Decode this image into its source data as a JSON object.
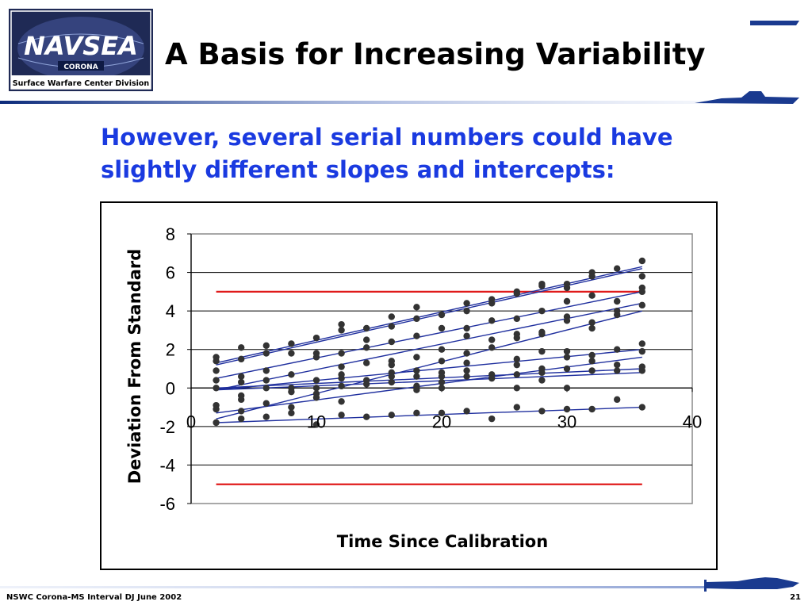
{
  "logo": {
    "wordmark": "NAVSEA",
    "location": "CORONA",
    "division": "Surface Warfare Center Division"
  },
  "slide": {
    "title": "A Basis for Increasing Variability",
    "subtitle": "However, several serial numbers could have slightly different slopes and intercepts:"
  },
  "footer": {
    "left": "NSWC Corona-MS Interval DJ June 2002",
    "page_number": "21"
  },
  "colors": {
    "accent_blue": "#1a3ae0",
    "navy": "#0b2a7a",
    "point": "#333333",
    "limit_line": "#e01b1b",
    "fit_line": "#1f2f9e"
  },
  "chart_data": {
    "type": "scatter",
    "title": "",
    "xlabel": "Time Since Calibration",
    "ylabel": "Deviation From Standard",
    "xlim": [
      0,
      40
    ],
    "ylim": [
      -6,
      8
    ],
    "xticks": [
      0,
      10,
      20,
      30,
      40
    ],
    "yticks": [
      8,
      6,
      4,
      2,
      0,
      -2,
      -4,
      -6
    ],
    "grid": "horizontal",
    "legend": "none",
    "limits": [
      {
        "name": "upper limit",
        "y": 5,
        "x": [
          2,
          36
        ]
      },
      {
        "name": "lower limit",
        "y": -5,
        "x": [
          2,
          36
        ]
      }
    ],
    "fit_lines": [
      {
        "x": [
          2,
          36
        ],
        "y": [
          1.3,
          6.3
        ]
      },
      {
        "x": [
          2,
          36
        ],
        "y": [
          1.2,
          6.2
        ]
      },
      {
        "x": [
          2,
          36
        ],
        "y": [
          0.5,
          5.0
        ]
      },
      {
        "x": [
          2,
          36
        ],
        "y": [
          -0.1,
          4.4
        ]
      },
      {
        "x": [
          2,
          36
        ],
        "y": [
          -1.6,
          4.0
        ]
      },
      {
        "x": [
          2,
          36
        ],
        "y": [
          -0.1,
          2.0
        ]
      },
      {
        "x": [
          2,
          36
        ],
        "y": [
          -1.3,
          1.6
        ]
      },
      {
        "x": [
          2,
          36
        ],
        "y": [
          0.0,
          1.0
        ]
      },
      {
        "x": [
          2,
          36
        ],
        "y": [
          -0.1,
          0.8
        ]
      },
      {
        "x": [
          2,
          36
        ],
        "y": [
          -1.8,
          -1.0
        ]
      }
    ],
    "points": [
      {
        "x": 2,
        "y": 1.6
      },
      {
        "x": 2,
        "y": 1.4
      },
      {
        "x": 2,
        "y": 0.9
      },
      {
        "x": 2,
        "y": 0.4
      },
      {
        "x": 2,
        "y": 0.0
      },
      {
        "x": 2,
        "y": -0.9
      },
      {
        "x": 2,
        "y": -1.1
      },
      {
        "x": 2,
        "y": -1.8
      },
      {
        "x": 4,
        "y": 2.1
      },
      {
        "x": 4,
        "y": 1.5
      },
      {
        "x": 4,
        "y": 0.6
      },
      {
        "x": 4,
        "y": 0.3
      },
      {
        "x": 4,
        "y": -0.4
      },
      {
        "x": 4,
        "y": -0.6
      },
      {
        "x": 4,
        "y": -1.2
      },
      {
        "x": 4,
        "y": -1.6
      },
      {
        "x": 6,
        "y": 2.2
      },
      {
        "x": 6,
        "y": 1.8
      },
      {
        "x": 6,
        "y": 0.9
      },
      {
        "x": 6,
        "y": 0.4
      },
      {
        "x": 6,
        "y": 0.0
      },
      {
        "x": 6,
        "y": -0.8
      },
      {
        "x": 6,
        "y": -1.5
      },
      {
        "x": 8,
        "y": 2.3
      },
      {
        "x": 8,
        "y": 1.8
      },
      {
        "x": 8,
        "y": 0.7
      },
      {
        "x": 8,
        "y": 0.0
      },
      {
        "x": 8,
        "y": -0.2
      },
      {
        "x": 8,
        "y": -1.0
      },
      {
        "x": 8,
        "y": -1.3
      },
      {
        "x": 10,
        "y": 2.6
      },
      {
        "x": 10,
        "y": 1.8
      },
      {
        "x": 10,
        "y": 1.6
      },
      {
        "x": 10,
        "y": 0.4
      },
      {
        "x": 10,
        "y": 0.0
      },
      {
        "x": 10,
        "y": -0.3
      },
      {
        "x": 10,
        "y": -0.5
      },
      {
        "x": 10,
        "y": -1.9
      },
      {
        "x": 12,
        "y": 3.3
      },
      {
        "x": 12,
        "y": 3.0
      },
      {
        "x": 12,
        "y": 1.8
      },
      {
        "x": 12,
        "y": 1.1
      },
      {
        "x": 12,
        "y": 0.7
      },
      {
        "x": 12,
        "y": 0.5
      },
      {
        "x": 12,
        "y": 0.1
      },
      {
        "x": 12,
        "y": -0.7
      },
      {
        "x": 12,
        "y": -1.4
      },
      {
        "x": 14,
        "y": 3.1
      },
      {
        "x": 14,
        "y": 2.5
      },
      {
        "x": 14,
        "y": 2.1
      },
      {
        "x": 14,
        "y": 1.3
      },
      {
        "x": 14,
        "y": 0.4
      },
      {
        "x": 14,
        "y": 0.2
      },
      {
        "x": 14,
        "y": -1.5
      },
      {
        "x": 16,
        "y": 3.7
      },
      {
        "x": 16,
        "y": 3.2
      },
      {
        "x": 16,
        "y": 2.4
      },
      {
        "x": 16,
        "y": 1.4
      },
      {
        "x": 16,
        "y": 1.2
      },
      {
        "x": 16,
        "y": 0.8
      },
      {
        "x": 16,
        "y": 0.6
      },
      {
        "x": 16,
        "y": 0.3
      },
      {
        "x": 16,
        "y": -1.4
      },
      {
        "x": 18,
        "y": 4.2
      },
      {
        "x": 18,
        "y": 3.6
      },
      {
        "x": 18,
        "y": 2.7
      },
      {
        "x": 18,
        "y": 1.6
      },
      {
        "x": 18,
        "y": 0.9
      },
      {
        "x": 18,
        "y": 0.6
      },
      {
        "x": 18,
        "y": 0.1
      },
      {
        "x": 18,
        "y": -0.1
      },
      {
        "x": 18,
        "y": -1.3
      },
      {
        "x": 20,
        "y": 3.8
      },
      {
        "x": 20,
        "y": 3.1
      },
      {
        "x": 20,
        "y": 2.0
      },
      {
        "x": 20,
        "y": 1.4
      },
      {
        "x": 20,
        "y": 0.8
      },
      {
        "x": 20,
        "y": 0.6
      },
      {
        "x": 20,
        "y": 0.3
      },
      {
        "x": 20,
        "y": 0.0
      },
      {
        "x": 20,
        "y": -1.3
      },
      {
        "x": 22,
        "y": 4.4
      },
      {
        "x": 22,
        "y": 4.0
      },
      {
        "x": 22,
        "y": 3.1
      },
      {
        "x": 22,
        "y": 2.7
      },
      {
        "x": 22,
        "y": 1.8
      },
      {
        "x": 22,
        "y": 1.3
      },
      {
        "x": 22,
        "y": 0.9
      },
      {
        "x": 22,
        "y": 0.6
      },
      {
        "x": 22,
        "y": -1.2
      },
      {
        "x": 24,
        "y": 4.6
      },
      {
        "x": 24,
        "y": 4.4
      },
      {
        "x": 24,
        "y": 3.5
      },
      {
        "x": 24,
        "y": 2.5
      },
      {
        "x": 24,
        "y": 2.1
      },
      {
        "x": 24,
        "y": 0.7
      },
      {
        "x": 24,
        "y": 0.5
      },
      {
        "x": 24,
        "y": -1.6
      },
      {
        "x": 26,
        "y": 5.0
      },
      {
        "x": 26,
        "y": 4.9
      },
      {
        "x": 26,
        "y": 3.6
      },
      {
        "x": 26,
        "y": 2.8
      },
      {
        "x": 26,
        "y": 2.6
      },
      {
        "x": 26,
        "y": 1.5
      },
      {
        "x": 26,
        "y": 1.2
      },
      {
        "x": 26,
        "y": 0.7
      },
      {
        "x": 26,
        "y": 0.0
      },
      {
        "x": 26,
        "y": -1.0
      },
      {
        "x": 28,
        "y": 5.4
      },
      {
        "x": 28,
        "y": 5.3
      },
      {
        "x": 28,
        "y": 4.0
      },
      {
        "x": 28,
        "y": 2.9
      },
      {
        "x": 28,
        "y": 2.8
      },
      {
        "x": 28,
        "y": 1.9
      },
      {
        "x": 28,
        "y": 1.0
      },
      {
        "x": 28,
        "y": 0.8
      },
      {
        "x": 28,
        "y": 0.4
      },
      {
        "x": 28,
        "y": -1.2
      },
      {
        "x": 30,
        "y": 5.4
      },
      {
        "x": 30,
        "y": 5.2
      },
      {
        "x": 30,
        "y": 4.5
      },
      {
        "x": 30,
        "y": 3.7
      },
      {
        "x": 30,
        "y": 3.5
      },
      {
        "x": 30,
        "y": 1.9
      },
      {
        "x": 30,
        "y": 1.6
      },
      {
        "x": 30,
        "y": 1.0
      },
      {
        "x": 30,
        "y": 0.0
      },
      {
        "x": 30,
        "y": -1.1
      },
      {
        "x": 32,
        "y": 6.0
      },
      {
        "x": 32,
        "y": 5.8
      },
      {
        "x": 32,
        "y": 4.8
      },
      {
        "x": 32,
        "y": 3.4
      },
      {
        "x": 32,
        "y": 3.1
      },
      {
        "x": 32,
        "y": 1.7
      },
      {
        "x": 32,
        "y": 1.4
      },
      {
        "x": 32,
        "y": 0.9
      },
      {
        "x": 32,
        "y": -1.1
      },
      {
        "x": 34,
        "y": 6.2
      },
      {
        "x": 34,
        "y": 4.5
      },
      {
        "x": 34,
        "y": 4.0
      },
      {
        "x": 34,
        "y": 3.8
      },
      {
        "x": 34,
        "y": 2.0
      },
      {
        "x": 34,
        "y": 1.2
      },
      {
        "x": 34,
        "y": 0.9
      },
      {
        "x": 34,
        "y": -0.6
      },
      {
        "x": 36,
        "y": 6.6
      },
      {
        "x": 36,
        "y": 5.8
      },
      {
        "x": 36,
        "y": 5.2
      },
      {
        "x": 36,
        "y": 5.0
      },
      {
        "x": 36,
        "y": 4.3
      },
      {
        "x": 36,
        "y": 2.3
      },
      {
        "x": 36,
        "y": 1.9
      },
      {
        "x": 36,
        "y": 1.1
      },
      {
        "x": 36,
        "y": 0.9
      },
      {
        "x": 36,
        "y": -1.0
      }
    ]
  }
}
